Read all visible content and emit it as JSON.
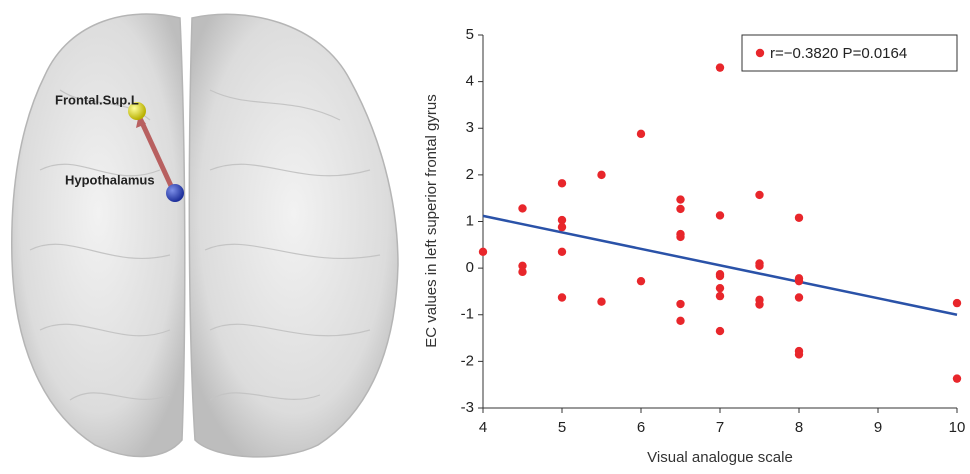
{
  "brain": {
    "labels": [
      "Frontal.Sup.L",
      "Hypothalamus"
    ]
  },
  "chart_data": {
    "type": "scatter",
    "xlabel": "Visual analogue scale",
    "ylabel": "EC values in left superior frontal gyrus",
    "xlim": [
      4,
      10
    ],
    "xticks": [
      4,
      5,
      6,
      7,
      8,
      9,
      10
    ],
    "ylim": [
      -3,
      5
    ],
    "yticks": [
      -3,
      -2,
      -1,
      0,
      1,
      2,
      3,
      4,
      5
    ],
    "legend": "upper right",
    "series": [
      {
        "name": "r=−0.3820 P=0.0164",
        "color": "#e8262b",
        "x": [
          4,
          4.5,
          4.5,
          4.5,
          5,
          5,
          5,
          5,
          5,
          5.5,
          5.5,
          6,
          6,
          6.5,
          6.5,
          6.5,
          6.5,
          6.5,
          6.5,
          7,
          7,
          7,
          7,
          7,
          7,
          7,
          7.5,
          7.5,
          7.5,
          7.5,
          7.5,
          8,
          8,
          8,
          8,
          8,
          8,
          10,
          10
        ],
        "values": [
          0.35,
          1.28,
          0.05,
          -0.08,
          1.82,
          1.03,
          0.88,
          0.35,
          -0.63,
          2.0,
          -0.72,
          2.88,
          -0.28,
          1.47,
          1.27,
          0.73,
          0.67,
          -0.77,
          -1.13,
          4.3,
          1.13,
          -0.13,
          -0.17,
          -0.43,
          -0.6,
          -1.35,
          1.57,
          0.1,
          0.05,
          -0.68,
          -0.78,
          1.08,
          -0.22,
          -0.28,
          -0.63,
          -1.78,
          -1.85,
          -0.75,
          -2.37
        ]
      }
    ],
    "trend_line": {
      "x": [
        4,
        10
      ],
      "values": [
        1.12,
        -1.0
      ],
      "color": "#2a52a8"
    }
  }
}
